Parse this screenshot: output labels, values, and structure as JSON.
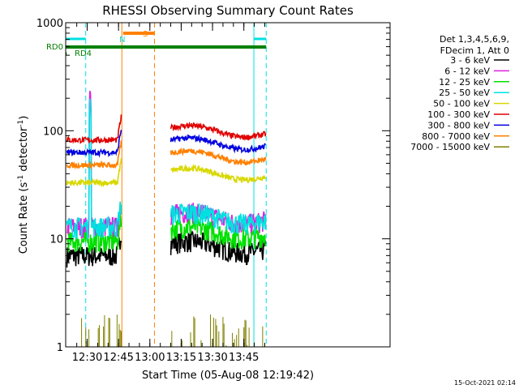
{
  "chart_data": {
    "type": "line",
    "title": "RHESSI Observing Summary Count Rates",
    "xlabel": "Start Time (05-Aug-08 12:19:42)",
    "ylabel_main": "Count Rate (s",
    "ylabel_sup1": "-1",
    "ylabel_mid": " detector",
    "ylabel_sup2": "-1",
    "ylabel_end": ")",
    "yscale": "log",
    "ylim": [
      1,
      1000
    ],
    "xlim_min": [
      739.7,
      895
    ],
    "yticks": [
      {
        "v": 1,
        "label": "1"
      },
      {
        "v": 10,
        "label": "10"
      },
      {
        "v": 100,
        "label": "100"
      },
      {
        "v": 1000,
        "label": "1000"
      }
    ],
    "xticks": [
      {
        "v": 750,
        "label": "12:30"
      },
      {
        "v": 765,
        "label": "12:45"
      },
      {
        "v": 780,
        "label": "13:00"
      },
      {
        "v": 795,
        "label": "13:15"
      },
      {
        "v": 810,
        "label": "13:30"
      },
      {
        "v": 825,
        "label": "13:45"
      }
    ],
    "legend": {
      "header1": "Det 1,3,4,5,6,9,",
      "header2": "FDecim 1, Att 0",
      "entries": [
        {
          "label": "3 - 6 keV",
          "color": "#000000"
        },
        {
          "label": "6 - 12 keV",
          "color": "#e020e0"
        },
        {
          "label": "12 - 25 keV",
          "color": "#00e000"
        },
        {
          "label": "25 - 50 keV",
          "color": "#00e0e0"
        },
        {
          "label": "50 - 100 keV",
          "color": "#d8d800"
        },
        {
          "label": "100 - 300 keV",
          "color": "#e00000"
        },
        {
          "label": "300 - 800 keV",
          "color": "#0000e0"
        },
        {
          "label": "800 - 7000 keV",
          "color": "#ff8000"
        },
        {
          "label": "7000 - 15000 keV",
          "color": "#808000"
        }
      ]
    },
    "flags": {
      "N": {
        "label": "N",
        "color": "#00e0e0",
        "segments": [
          [
            739.7,
            749.3
          ],
          [
            829.8,
            835.7
          ]
        ]
      },
      "S": {
        "label": "S",
        "color": "#ff8000",
        "segments": [
          [
            767.2,
            782.2
          ]
        ]
      },
      "RD0": {
        "label": "RD0",
        "color": "#008000",
        "segments": [
          [
            739.7,
            835.7
          ]
        ]
      },
      "RD4": {
        "label": "RD4",
        "color": "#008000",
        "segments": [
          [
            739.7,
            740.2
          ]
        ]
      }
    },
    "vlines": [
      {
        "t": 749.3,
        "color": "#00e0e0",
        "dash": true
      },
      {
        "t": 766.6,
        "color": "#ff8000",
        "dash": false
      },
      {
        "t": 782.2,
        "color": "#ff8000",
        "dash": true
      },
      {
        "t": 829.8,
        "color": "#00e0e0",
        "dash": false
      },
      {
        "t": 835.7,
        "color": "#00e0e0",
        "dash": true
      }
    ],
    "data_segments": [
      [
        740.3,
        766.4
      ],
      [
        790.0,
        835.5
      ]
    ],
    "series": [
      {
        "name": "3 - 6 keV",
        "color": "#000000",
        "base": 7.0,
        "spike": 0
      },
      {
        "name": "6 - 12 keV",
        "color": "#e020e0",
        "base": 13.0,
        "spike": 260
      },
      {
        "name": "12 - 25 keV",
        "color": "#00e000",
        "base": 9.5,
        "spike": 0
      },
      {
        "name": "25 - 50 keV",
        "color": "#00e0e0",
        "base": 13.0,
        "spike": 220
      },
      {
        "name": "50 - 100 keV",
        "color": "#d8d800",
        "base": 33.0,
        "spike": 0
      },
      {
        "name": "100 - 300 keV",
        "color": "#e00000",
        "base": 82.0,
        "spike": 0
      },
      {
        "name": "300 - 800 keV",
        "color": "#0000e0",
        "base": 63.0,
        "spike": 0
      },
      {
        "name": "800 - 7000 keV",
        "color": "#ff8000",
        "base": 48.0,
        "spike": 0
      },
      {
        "name": "7000 - 15000 keV",
        "color": "#808000",
        "base": 1.0,
        "spike": 0
      }
    ],
    "footer": "15-Oct-2021 02:14"
  }
}
